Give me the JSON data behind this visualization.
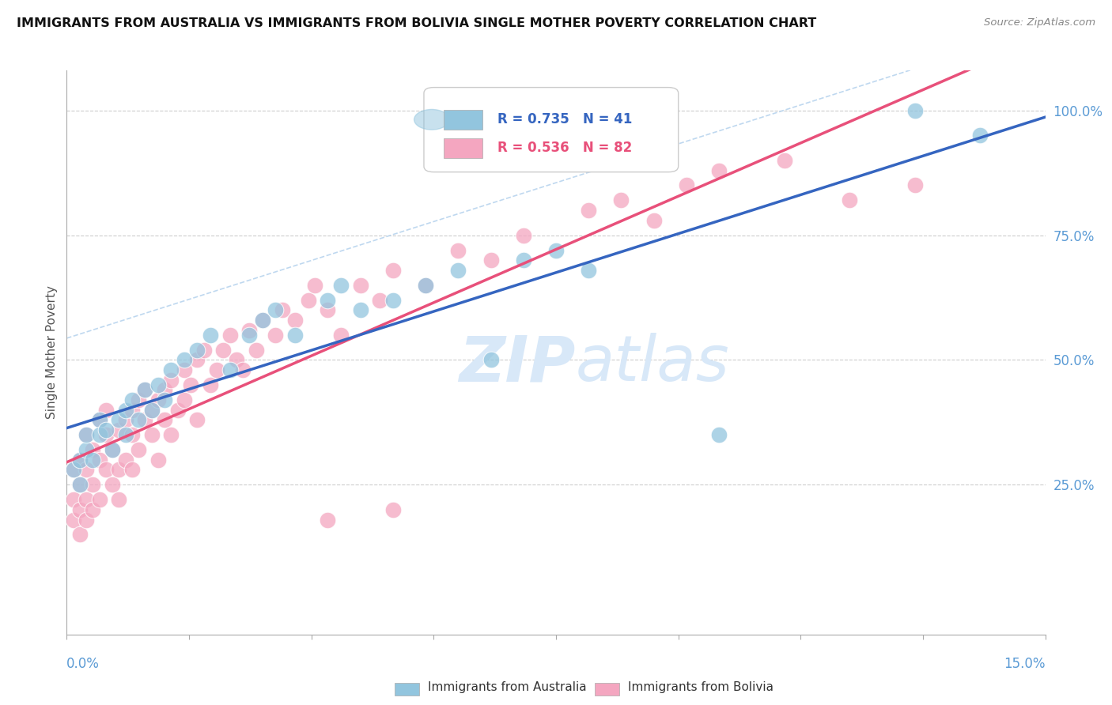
{
  "title": "IMMIGRANTS FROM AUSTRALIA VS IMMIGRANTS FROM BOLIVIA SINGLE MOTHER POVERTY CORRELATION CHART",
  "source": "Source: ZipAtlas.com",
  "ylabel": "Single Mother Poverty",
  "legend_aus": "Immigrants from Australia",
  "legend_bol": "Immigrants from Bolivia",
  "R_aus": 0.735,
  "N_aus": 41,
  "R_bol": 0.536,
  "N_bol": 82,
  "color_aus": "#92C5DE",
  "color_bol": "#F4A6C0",
  "color_aus_line": "#3565C0",
  "color_bol_line": "#E8507A",
  "color_conf": "#B8D4EE",
  "xmin": 0.0,
  "xmax": 0.15,
  "ymin": 0.0,
  "ymax": 1.0,
  "yticks": [
    0.25,
    0.5,
    0.75,
    1.0
  ],
  "ytick_labels": [
    "25.0%",
    "50.0%",
    "75.0%",
    "100.0%"
  ],
  "watermark_zip": "ZIP",
  "watermark_atlas": "atlas",
  "watermark_color": "#D8E8F8"
}
